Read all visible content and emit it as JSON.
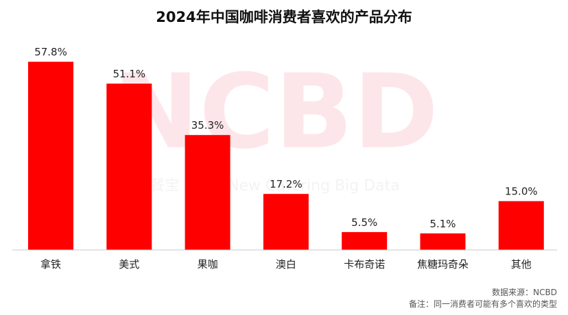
{
  "chart_data": {
    "type": "bar",
    "title": "2024年中国咖啡消费者喜欢的产品分布",
    "categories": [
      "拿铁",
      "美式",
      "果咖",
      "澳白",
      "卡布奇诺",
      "焦糖玛奇朵",
      "其他"
    ],
    "values": [
      57.8,
      51.1,
      35.3,
      17.2,
      5.5,
      5.1,
      15.0
    ],
    "value_labels": [
      "57.8%",
      "51.1%",
      "35.3%",
      "17.2%",
      "5.5%",
      "5.1%",
      "15.0%"
    ],
    "unit": "%",
    "ylim": [
      0,
      65
    ],
    "grid": false,
    "legend": "none",
    "bar_color": "#ff0000",
    "axis_color": "#c8c8c8"
  },
  "watermark": {
    "logo_text": "NCBD",
    "cn_text": "餐宝",
    "en_text": "New Catering Big Data"
  },
  "footer": {
    "source": "数据来源：NCBD",
    "note": "备注：同一消费者可能有多个喜欢的类型"
  }
}
